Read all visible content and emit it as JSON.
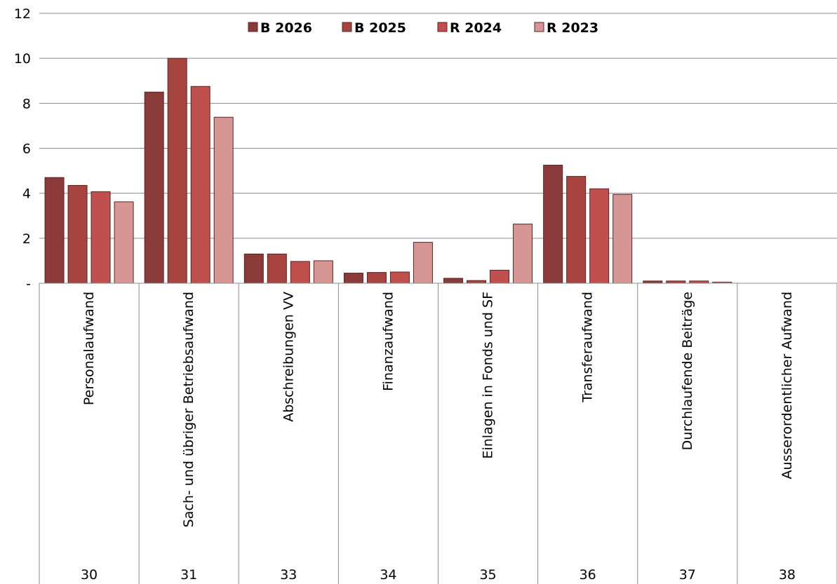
{
  "chart_data": {
    "type": "bar",
    "title": "",
    "xlabel": "",
    "ylabel": "",
    "ylim": [
      0,
      12
    ],
    "yticks": [
      {
        "value": 0,
        "label": "-"
      },
      {
        "value": 2,
        "label": "2"
      },
      {
        "value": 4,
        "label": "4"
      },
      {
        "value": 6,
        "label": "6"
      },
      {
        "value": 8,
        "label": "8"
      },
      {
        "value": 10,
        "label": "10"
      },
      {
        "value": 12,
        "label": "12"
      }
    ],
    "grid": true,
    "legend_position": "top",
    "categories": [
      {
        "code": "30",
        "label": "Personalaufwand"
      },
      {
        "code": "31",
        "label": "Sach- und übriger Betriebsaufwand"
      },
      {
        "code": "33",
        "label": "Abschreibungen VV"
      },
      {
        "code": "34",
        "label": "Finanzaufwand"
      },
      {
        "code": "35",
        "label": "Einlagen in Fonds und SF"
      },
      {
        "code": "36",
        "label": "Transferaufwand"
      },
      {
        "code": "37",
        "label": "Durchlaufende Beiträge"
      },
      {
        "code": "38",
        "label": "Ausserordentlicher Aufwand"
      }
    ],
    "series": [
      {
        "name": "B 2026",
        "color": "#8b3a3a",
        "values": [
          4.7,
          8.5,
          1.3,
          0.45,
          0.22,
          5.25,
          0.1,
          0
        ]
      },
      {
        "name": "B 2025",
        "color": "#a8443f",
        "values": [
          4.35,
          10.0,
          1.3,
          0.48,
          0.12,
          4.75,
          0.1,
          0
        ]
      },
      {
        "name": "R 2024",
        "color": "#c0504d",
        "values": [
          4.07,
          8.75,
          0.97,
          0.5,
          0.58,
          4.2,
          0.1,
          0
        ]
      },
      {
        "name": "R 2023",
        "color": "#d69694",
        "values": [
          3.62,
          7.38,
          1.0,
          1.82,
          2.63,
          3.95,
          0.05,
          0
        ]
      }
    ]
  }
}
